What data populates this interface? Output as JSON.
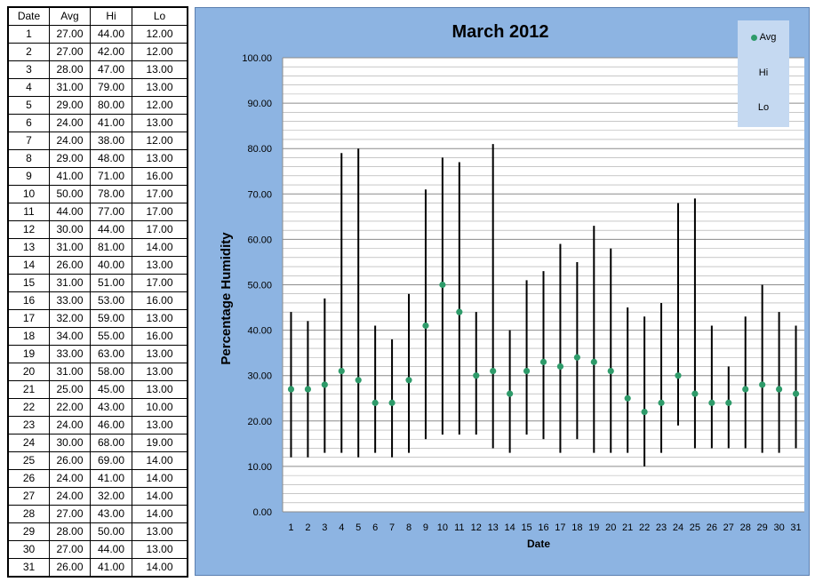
{
  "table": {
    "headers": [
      "Date",
      "Avg",
      "Hi",
      "Lo"
    ],
    "rows": [
      [
        "1",
        "27.00",
        "44.00",
        "12.00"
      ],
      [
        "2",
        "27.00",
        "42.00",
        "12.00"
      ],
      [
        "3",
        "28.00",
        "47.00",
        "13.00"
      ],
      [
        "4",
        "31.00",
        "79.00",
        "13.00"
      ],
      [
        "5",
        "29.00",
        "80.00",
        "12.00"
      ],
      [
        "6",
        "24.00",
        "41.00",
        "13.00"
      ],
      [
        "7",
        "24.00",
        "38.00",
        "12.00"
      ],
      [
        "8",
        "29.00",
        "48.00",
        "13.00"
      ],
      [
        "9",
        "41.00",
        "71.00",
        "16.00"
      ],
      [
        "10",
        "50.00",
        "78.00",
        "17.00"
      ],
      [
        "11",
        "44.00",
        "77.00",
        "17.00"
      ],
      [
        "12",
        "30.00",
        "44.00",
        "17.00"
      ],
      [
        "13",
        "31.00",
        "81.00",
        "14.00"
      ],
      [
        "14",
        "26.00",
        "40.00",
        "13.00"
      ],
      [
        "15",
        "31.00",
        "51.00",
        "17.00"
      ],
      [
        "16",
        "33.00",
        "53.00",
        "16.00"
      ],
      [
        "17",
        "32.00",
        "59.00",
        "13.00"
      ],
      [
        "18",
        "34.00",
        "55.00",
        "16.00"
      ],
      [
        "19",
        "33.00",
        "63.00",
        "13.00"
      ],
      [
        "20",
        "31.00",
        "58.00",
        "13.00"
      ],
      [
        "21",
        "25.00",
        "45.00",
        "13.00"
      ],
      [
        "22",
        "22.00",
        "43.00",
        "10.00"
      ],
      [
        "23",
        "24.00",
        "46.00",
        "13.00"
      ],
      [
        "24",
        "30.00",
        "68.00",
        "19.00"
      ],
      [
        "25",
        "26.00",
        "69.00",
        "14.00"
      ],
      [
        "26",
        "24.00",
        "41.00",
        "14.00"
      ],
      [
        "27",
        "24.00",
        "32.00",
        "14.00"
      ],
      [
        "28",
        "27.00",
        "43.00",
        "14.00"
      ],
      [
        "29",
        "28.00",
        "50.00",
        "13.00"
      ],
      [
        "30",
        "27.00",
        "44.00",
        "13.00"
      ],
      [
        "31",
        "26.00",
        "41.00",
        "14.00"
      ]
    ]
  },
  "chart_data": {
    "type": "scatter",
    "title": "March 2012",
    "xlabel": "Date",
    "ylabel": "Percentage Humidity",
    "x": [
      1,
      2,
      3,
      4,
      5,
      6,
      7,
      8,
      9,
      10,
      11,
      12,
      13,
      14,
      15,
      16,
      17,
      18,
      19,
      20,
      21,
      22,
      23,
      24,
      25,
      26,
      27,
      28,
      29,
      30,
      31
    ],
    "series": [
      {
        "name": "Avg",
        "values": [
          27,
          27,
          28,
          31,
          29,
          24,
          24,
          29,
          41,
          50,
          44,
          30,
          31,
          26,
          31,
          33,
          32,
          34,
          33,
          31,
          25,
          22,
          24,
          30,
          26,
          24,
          24,
          27,
          28,
          27,
          26
        ]
      },
      {
        "name": "Hi",
        "values": [
          44,
          42,
          47,
          79,
          80,
          41,
          38,
          48,
          71,
          78,
          77,
          44,
          81,
          40,
          51,
          53,
          59,
          55,
          63,
          58,
          45,
          43,
          46,
          68,
          69,
          41,
          32,
          43,
          50,
          44,
          41
        ]
      },
      {
        "name": "Lo",
        "values": [
          12,
          12,
          13,
          13,
          12,
          13,
          12,
          13,
          16,
          17,
          17,
          17,
          14,
          13,
          17,
          16,
          13,
          16,
          13,
          13,
          13,
          10,
          13,
          19,
          14,
          14,
          14,
          14,
          13,
          13,
          14
        ]
      }
    ],
    "ylim": [
      0,
      100
    ],
    "yticks": [
      "0.00",
      "10.00",
      "20.00",
      "30.00",
      "40.00",
      "50.00",
      "60.00",
      "70.00",
      "80.00",
      "90.00",
      "100.00"
    ],
    "ytick_values": [
      0,
      10,
      20,
      30,
      40,
      50,
      60,
      70,
      80,
      90,
      100
    ],
    "minor_grid_step": 2,
    "grid": true,
    "legend_position": "top-right",
    "colors": {
      "panel_background": "#8db4e2",
      "plot_background": "#ffffff",
      "avg_marker": "#2e9b6a",
      "range_line": "#000000",
      "legend_background": "#c5d9f1",
      "gridline": "#a6a6a6"
    }
  }
}
